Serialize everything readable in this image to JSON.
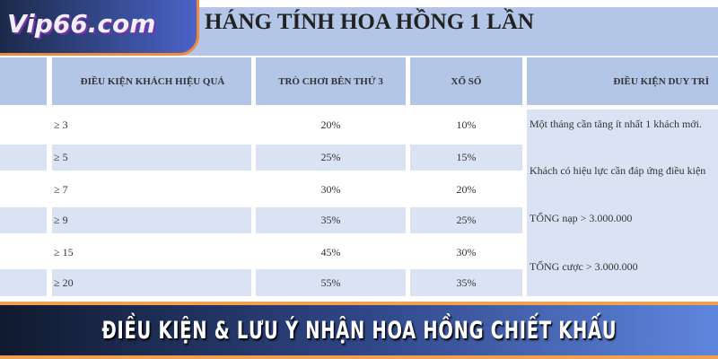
{
  "logo": {
    "text": "Vip66.com"
  },
  "title": "HÁNG TÍNH HOA HỒNG 1 LẦN",
  "headers": [
    "ĐIỀU KIỆN KHÁCH HIỆU QUẢ",
    "TRÒ CHƠI BÊN THỨ 3",
    "XỔ SỐ",
    "ĐIỀU KIỆN DUY TRÌ"
  ],
  "rows": [
    {
      "cond": "≥ 3",
      "third": "20%",
      "lottery": "10%"
    },
    {
      "cond": "≥ 5",
      "third": "25%",
      "lottery": "15%"
    },
    {
      "cond": "≥ 7",
      "third": "30%",
      "lottery": "20%"
    },
    {
      "cond": "≥ 9",
      "third": "35%",
      "lottery": "25%"
    },
    {
      "cond": "≥ 15",
      "third": "45%",
      "lottery": "30%"
    },
    {
      "cond": "≥ 20",
      "third": "55%",
      "lottery": "35%"
    }
  ],
  "maintain": [
    "Một tháng cần tăng ít nhất 1 khách mới.",
    "Khách có hiệu lực cần đáp ứng điều kiện",
    "TỔNG nạp > 3.000.000",
    "TỔNG cược > 3.000.000"
  ],
  "banner": "ĐIỀU KIỆN & LƯU Ý NHẬN HOA HỒNG CHIẾT KHẤU"
}
